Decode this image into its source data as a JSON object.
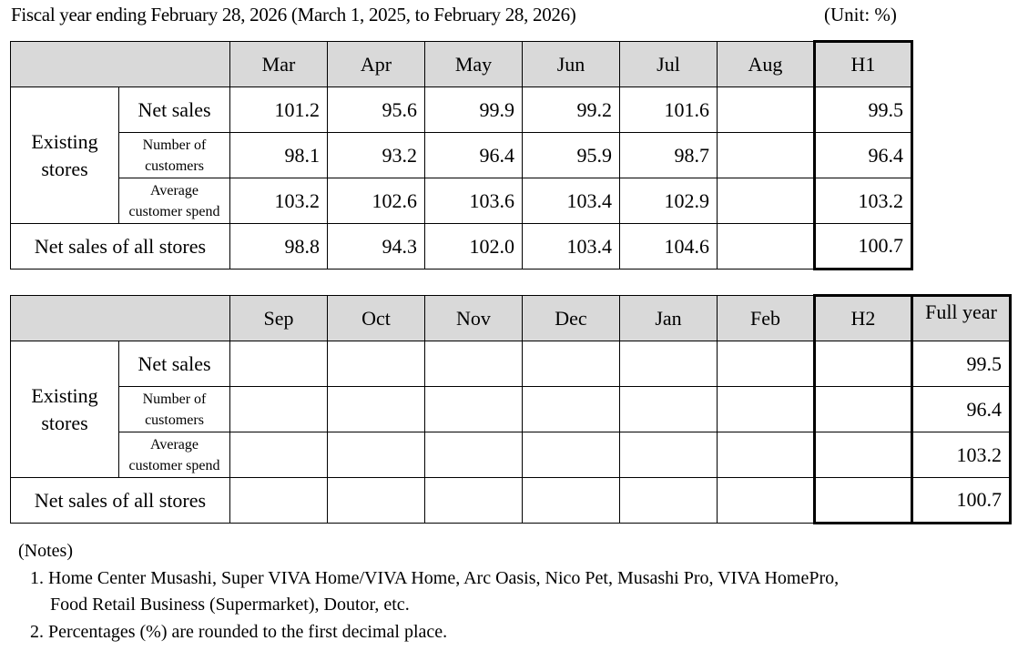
{
  "header": {
    "title": "Fiscal year ending February 28, 2026 (March 1, 2025, to February 28, 2026)",
    "unit": "(Unit: %)"
  },
  "table1": {
    "months": [
      "Mar",
      "Apr",
      "May",
      "Jun",
      "Jul",
      "Aug"
    ],
    "half_label": "H1",
    "group_label_line1": "Existing",
    "group_label_line2": "stores",
    "rows": [
      {
        "label": "Net sales",
        "values": [
          "101.2",
          "95.6",
          "99.9",
          "99.2",
          "101.6",
          ""
        ],
        "half": "99.5"
      },
      {
        "label_line1": "Number of",
        "label_line2": "customers",
        "values": [
          "98.1",
          "93.2",
          "96.4",
          "95.9",
          "98.7",
          ""
        ],
        "half": "96.4"
      },
      {
        "label_line1": "Average",
        "label_line2": "customer spend",
        "values": [
          "103.2",
          "102.6",
          "103.6",
          "103.4",
          "102.9",
          ""
        ],
        "half": "103.2"
      },
      {
        "label": "Net sales of all stores",
        "values": [
          "98.8",
          "94.3",
          "102.0",
          "103.4",
          "104.6",
          ""
        ],
        "half": "100.7"
      }
    ]
  },
  "table2": {
    "months": [
      "Sep",
      "Oct",
      "Nov",
      "Dec",
      "Jan",
      "Feb"
    ],
    "half_label": "H2",
    "full_label": "Full year",
    "group_label_line1": "Existing",
    "group_label_line2": "stores",
    "rows": [
      {
        "label": "Net sales",
        "values": [
          "",
          "",
          "",
          "",
          "",
          ""
        ],
        "half": "",
        "full": "99.5"
      },
      {
        "label_line1": "Number of",
        "label_line2": "customers",
        "values": [
          "",
          "",
          "",
          "",
          "",
          ""
        ],
        "half": "",
        "full": "96.4"
      },
      {
        "label_line1": "Average",
        "label_line2": "customer spend",
        "values": [
          "",
          "",
          "",
          "",
          "",
          ""
        ],
        "half": "",
        "full": "103.2"
      },
      {
        "label": "Net sales of all stores",
        "values": [
          "",
          "",
          "",
          "",
          "",
          ""
        ],
        "half": "",
        "full": "100.7"
      }
    ]
  },
  "notes": {
    "heading": "(Notes)",
    "item1_line1": "1. Home Center Musashi, Super VIVA Home/VIVA Home, Arc Oasis, Nico Pet, Musashi Pro, VIVA HomePro,",
    "item1_line2": "Food Retail Business (Supermarket), Doutor, etc.",
    "item2": "2. Percentages (%) are rounded to the first decimal place."
  }
}
